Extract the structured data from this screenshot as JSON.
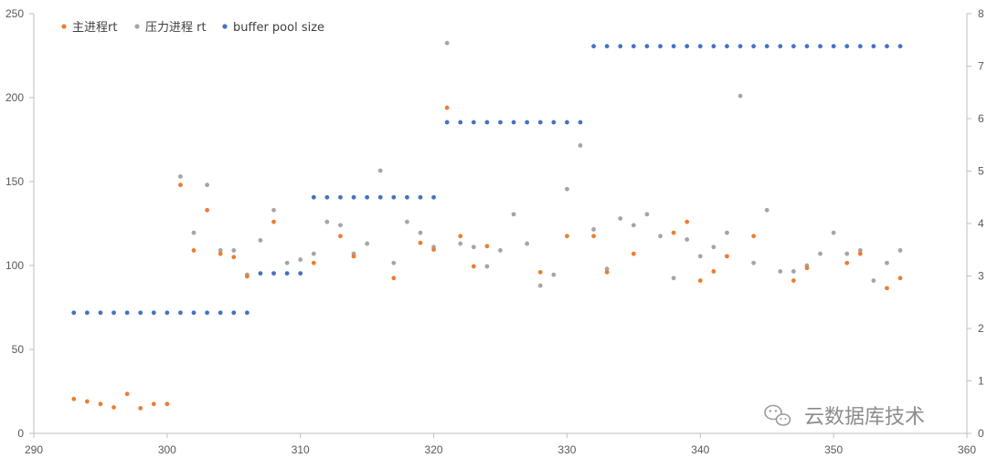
{
  "chart_data": {
    "type": "scatter",
    "title": "",
    "xlabel": "",
    "ylabel": "",
    "xlim": [
      290,
      360
    ],
    "ylim": [
      0,
      250
    ],
    "y2lim": [
      0,
      8
    ],
    "x_ticks": [
      290,
      300,
      310,
      320,
      330,
      340,
      350,
      360
    ],
    "y_ticks": [
      0,
      50,
      100,
      150,
      200,
      250
    ],
    "y2_ticks": [
      0,
      1,
      2,
      3,
      4,
      5,
      6,
      7,
      8
    ],
    "grid": false,
    "legend_position": "top-left",
    "series": [
      {
        "name": "主进程rt",
        "color": "#ED7D31",
        "axis": "left",
        "x": [
          293,
          294,
          295,
          296,
          297,
          298,
          299,
          300,
          301,
          302,
          303,
          304,
          305,
          306,
          308,
          311,
          313,
          314,
          317,
          319,
          320,
          321,
          322,
          323,
          324,
          328,
          330,
          332,
          333,
          335,
          338,
          339,
          340,
          341,
          342,
          344,
          347,
          348,
          351,
          352,
          354,
          355
        ],
        "y": [
          20.5,
          19,
          17.5,
          15.5,
          23.5,
          15,
          17.5,
          17.5,
          148,
          109,
          133,
          107,
          105,
          93.5,
          126,
          101.5,
          117.5,
          105.5,
          92.5,
          113.5,
          109.5,
          194,
          117.5,
          99.5,
          111.5,
          96,
          117.5,
          117.5,
          96,
          107,
          119.5,
          126,
          91,
          96.5,
          105.5,
          117.5,
          91,
          98.5,
          101.5,
          107,
          86.5,
          92.5
        ]
      },
      {
        "name": "压力进程 rt",
        "color": "#A5A5A5",
        "axis": "left",
        "x": [
          301,
          302,
          303,
          304,
          305,
          306,
          307,
          308,
          309,
          310,
          311,
          312,
          313,
          314,
          315,
          316,
          317,
          318,
          319,
          320,
          321,
          322,
          323,
          324,
          325,
          326,
          327,
          328,
          329,
          330,
          331,
          332,
          333,
          334,
          335,
          336,
          337,
          338,
          339,
          340,
          341,
          342,
          343,
          344,
          345,
          346,
          347,
          348,
          349,
          350,
          351,
          352,
          353,
          354,
          355
        ],
        "y": [
          153,
          119.5,
          148,
          109,
          109,
          94.5,
          115,
          133,
          101.5,
          103.5,
          107,
          126,
          124,
          107,
          113,
          156.5,
          101.5,
          126,
          119.5,
          111,
          232.5,
          113,
          111,
          99.5,
          109,
          130.5,
          113,
          88,
          94.5,
          145.5,
          171.5,
          121.5,
          98,
          128,
          124,
          130.5,
          117.5,
          92.5,
          115.5,
          105.5,
          111,
          119.5,
          201,
          101.5,
          133,
          96.5,
          96.5,
          100,
          107,
          119.5,
          107,
          109,
          91,
          101.5,
          109
        ]
      },
      {
        "name": "buffer pool size",
        "color": "#4472C4",
        "axis": "right",
        "x": [
          293,
          294,
          295,
          296,
          297,
          298,
          299,
          300,
          301,
          302,
          303,
          304,
          305,
          306,
          307,
          308,
          309,
          310,
          311,
          312,
          313,
          314,
          315,
          316,
          317,
          318,
          319,
          320,
          321,
          322,
          323,
          324,
          325,
          326,
          327,
          328,
          329,
          330,
          331,
          332,
          333,
          334,
          335,
          336,
          337,
          338,
          339,
          340,
          341,
          342,
          343,
          344,
          345,
          346,
          347,
          348,
          349,
          350,
          351,
          352,
          353,
          354,
          355
        ],
        "y": [
          2.3,
          2.3,
          2.3,
          2.3,
          2.3,
          2.3,
          2.3,
          2.3,
          2.3,
          2.3,
          2.3,
          2.3,
          2.3,
          2.3,
          3.05,
          3.05,
          3.05,
          3.05,
          4.5,
          4.5,
          4.5,
          4.5,
          4.5,
          4.5,
          4.5,
          4.5,
          4.5,
          4.5,
          5.93,
          5.93,
          5.93,
          5.93,
          5.93,
          5.93,
          5.93,
          5.93,
          5.93,
          5.93,
          5.93,
          7.38,
          7.38,
          7.38,
          7.38,
          7.38,
          7.38,
          7.38,
          7.38,
          7.38,
          7.38,
          7.38,
          7.38,
          7.38,
          7.38,
          7.38,
          7.38,
          7.38,
          7.38,
          7.38,
          7.38,
          7.38,
          7.38,
          7.38,
          7.38
        ]
      }
    ]
  },
  "watermark": {
    "icon": "wechat-icon",
    "text": "云数据库技术"
  }
}
